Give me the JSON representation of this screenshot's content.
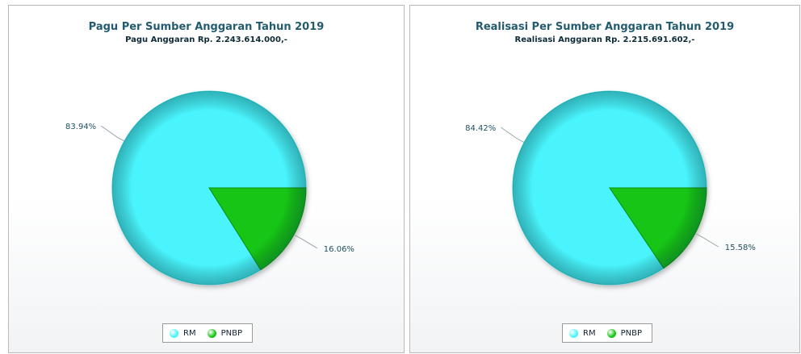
{
  "chart_data": [
    {
      "type": "pie",
      "title": "Pagu Per Sumber Anggaran Tahun 2019",
      "subtitle": "Pagu Anggaran Rp. 2.243.614.000,-",
      "categories": [
        "RM",
        "PNBP"
      ],
      "values": [
        83.94,
        16.06
      ],
      "labels": [
        "83.94%",
        "16.06%"
      ],
      "colors": [
        "#4af4fc",
        "#14c514"
      ],
      "legend": "bottom"
    },
    {
      "type": "pie",
      "title": "Realisasi Per Sumber Anggaran Tahun 2019",
      "subtitle": "Realisasi Anggaran Rp. 2.215.691.602,-",
      "categories": [
        "RM",
        "PNBP"
      ],
      "values": [
        84.42,
        15.58
      ],
      "labels": [
        "84.42%",
        "15.58%"
      ],
      "colors": [
        "#4af4fc",
        "#14c514"
      ],
      "legend": "bottom"
    }
  ]
}
